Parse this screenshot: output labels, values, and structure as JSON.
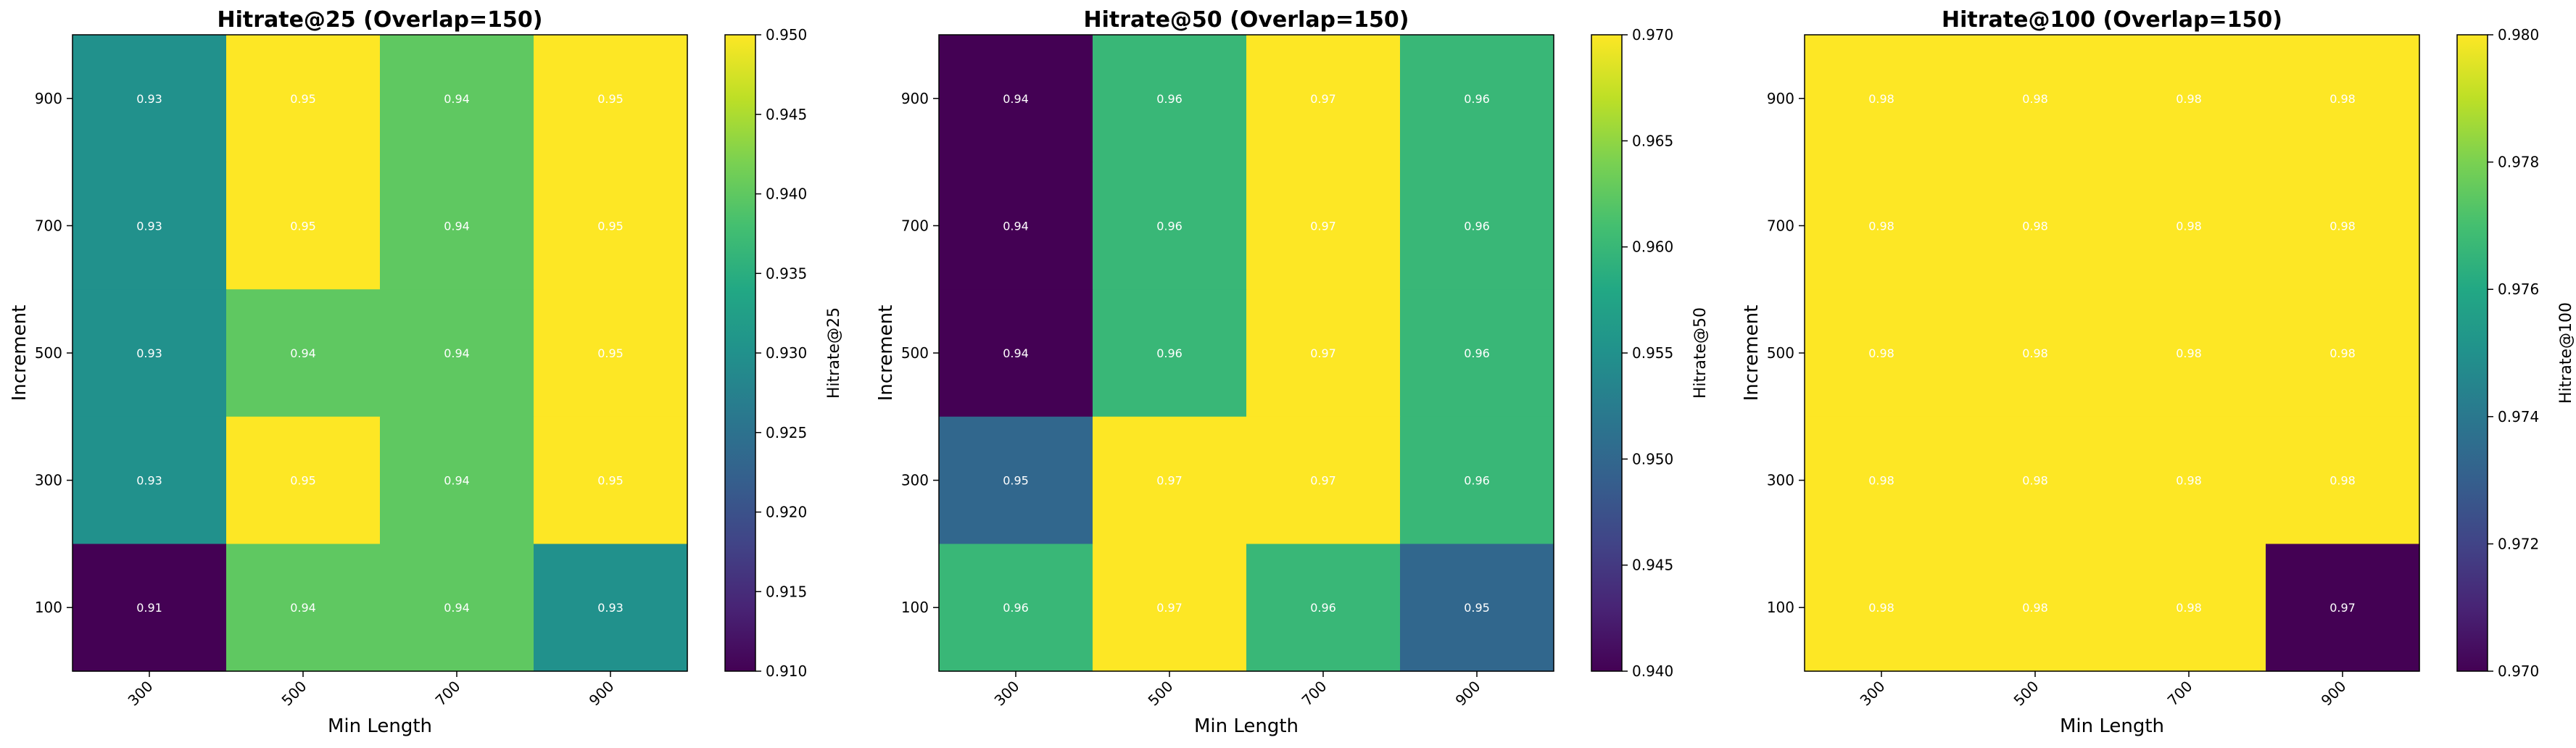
{
  "colormap": "viridis",
  "text_color_on_cells": "#ffffff",
  "chart_data": [
    {
      "type": "heatmap",
      "title": "Hitrate@25 (Overlap=150)",
      "xlabel": "Min Length",
      "ylabel": "Increment",
      "x_categories": [
        "300",
        "500",
        "700",
        "900"
      ],
      "y_categories": [
        "900",
        "700",
        "500",
        "300",
        "100"
      ],
      "values": [
        [
          0.93,
          0.95,
          0.94,
          0.95
        ],
        [
          0.93,
          0.95,
          0.94,
          0.95
        ],
        [
          0.93,
          0.94,
          0.94,
          0.95
        ],
        [
          0.93,
          0.95,
          0.94,
          0.95
        ],
        [
          0.91,
          0.94,
          0.94,
          0.93
        ]
      ],
      "cell_labels": [
        [
          "0.93",
          "0.95",
          "0.94",
          "0.95"
        ],
        [
          "0.93",
          "0.95",
          "0.94",
          "0.95"
        ],
        [
          "0.93",
          "0.94",
          "0.94",
          "0.95"
        ],
        [
          "0.93",
          "0.95",
          "0.94",
          "0.95"
        ],
        [
          "0.91",
          "0.94",
          "0.94",
          "0.93"
        ]
      ],
      "colorbar_label": "Hitrate@25",
      "vmin": 0.91,
      "vmax": 0.95,
      "colorbar_ticks": [
        "0.910",
        "0.915",
        "0.920",
        "0.925",
        "0.930",
        "0.935",
        "0.940",
        "0.945",
        "0.950"
      ]
    },
    {
      "type": "heatmap",
      "title": "Hitrate@50 (Overlap=150)",
      "xlabel": "Min Length",
      "ylabel": "Increment",
      "x_categories": [
        "300",
        "500",
        "700",
        "900"
      ],
      "y_categories": [
        "900",
        "700",
        "500",
        "300",
        "100"
      ],
      "values": [
        [
          0.94,
          0.96,
          0.97,
          0.96
        ],
        [
          0.94,
          0.96,
          0.97,
          0.96
        ],
        [
          0.94,
          0.96,
          0.97,
          0.96
        ],
        [
          0.95,
          0.97,
          0.97,
          0.96
        ],
        [
          0.96,
          0.97,
          0.96,
          0.95
        ]
      ],
      "cell_labels": [
        [
          "0.94",
          "0.96",
          "0.97",
          "0.96"
        ],
        [
          "0.94",
          "0.96",
          "0.97",
          "0.96"
        ],
        [
          "0.94",
          "0.96",
          "0.97",
          "0.96"
        ],
        [
          "0.95",
          "0.97",
          "0.97",
          "0.96"
        ],
        [
          "0.96",
          "0.97",
          "0.96",
          "0.95"
        ]
      ],
      "colorbar_label": "Hitrate@50",
      "vmin": 0.94,
      "vmax": 0.97,
      "colorbar_ticks": [
        "0.940",
        "0.945",
        "0.950",
        "0.955",
        "0.960",
        "0.965",
        "0.970"
      ]
    },
    {
      "type": "heatmap",
      "title": "Hitrate@100 (Overlap=150)",
      "xlabel": "Min Length",
      "ylabel": "Increment",
      "x_categories": [
        "300",
        "500",
        "700",
        "900"
      ],
      "y_categories": [
        "900",
        "700",
        "500",
        "300",
        "100"
      ],
      "values": [
        [
          0.98,
          0.98,
          0.98,
          0.98
        ],
        [
          0.98,
          0.98,
          0.98,
          0.98
        ],
        [
          0.98,
          0.98,
          0.98,
          0.98
        ],
        [
          0.98,
          0.98,
          0.98,
          0.98
        ],
        [
          0.98,
          0.98,
          0.98,
          0.97
        ]
      ],
      "cell_labels": [
        [
          "0.98",
          "0.98",
          "0.98",
          "0.98"
        ],
        [
          "0.98",
          "0.98",
          "0.98",
          "0.98"
        ],
        [
          "0.98",
          "0.98",
          "0.98",
          "0.98"
        ],
        [
          "0.98",
          "0.98",
          "0.98",
          "0.98"
        ],
        [
          "0.98",
          "0.98",
          "0.98",
          "0.97"
        ]
      ],
      "colorbar_label": "Hitrate@100",
      "vmin": 0.97,
      "vmax": 0.98,
      "colorbar_ticks": [
        "0.970",
        "0.972",
        "0.974",
        "0.976",
        "0.978",
        "0.980"
      ]
    }
  ]
}
